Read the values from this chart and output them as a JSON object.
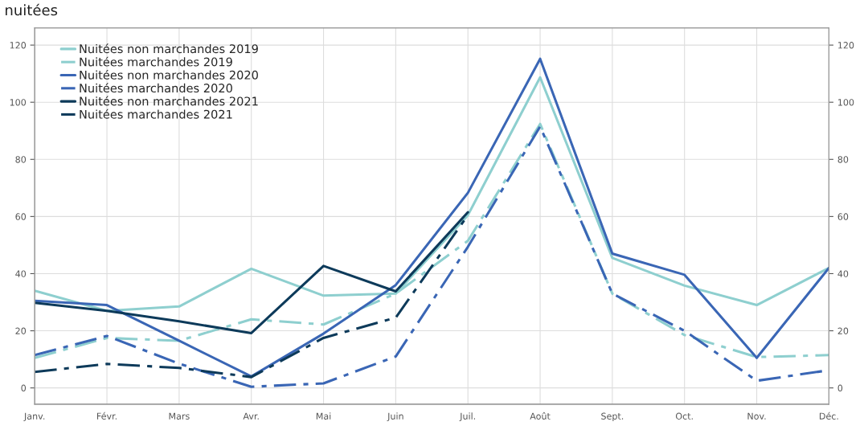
{
  "chart_data": {
    "type": "line",
    "title": "nuitées",
    "categories": [
      "Janv.",
      "Févr.",
      "Mars",
      "Avr.",
      "Mai",
      "Juin",
      "Juil.",
      "Août",
      "Sept.",
      "Oct.",
      "Nov.",
      "Déc."
    ],
    "series": [
      {
        "name": "Nuitées non marchandes 2019",
        "color": "#8ecfcf",
        "line_style": "solid",
        "values": [
          34,
          27,
          28.5,
          41.7,
          32.3,
          33,
          60.5,
          108.7,
          45.5,
          35.8,
          29,
          42
        ]
      },
      {
        "name": "Nuitées marchandes 2019",
        "color": "#8ecfcf",
        "line_style": "dashed",
        "values": [
          10.5,
          17.5,
          16.5,
          24,
          22.2,
          33,
          51.5,
          92.4,
          33,
          18.5,
          10.8,
          11.5
        ]
      },
      {
        "name": "Nuitées non marchandes 2020",
        "color": "#3a66b5",
        "line_style": "solid",
        "values": [
          30.5,
          29,
          16.5,
          4,
          19,
          36,
          68.3,
          115.2,
          47,
          39.6,
          10.5,
          42
        ]
      },
      {
        "name": "Nuitées marchandes 2020",
        "color": "#3a66b5",
        "line_style": "dashed",
        "values": [
          11.5,
          18.2,
          8.5,
          0.4,
          1.6,
          11,
          49.4,
          91.5,
          33,
          20,
          2.5,
          6.2
        ]
      },
      {
        "name": "Nuitées non marchandes 2021",
        "color": "#0d3a5a",
        "line_style": "solid",
        "values": [
          29.8,
          27,
          23.3,
          19.2,
          42.7,
          33.8,
          61.5,
          null,
          null,
          null,
          null,
          null
        ]
      },
      {
        "name": "Nuitées marchandes 2021",
        "color": "#0d3a5a",
        "line_style": "dashed",
        "values": [
          5.6,
          8.4,
          7,
          3.8,
          17.5,
          24.6,
          60.5,
          null,
          null,
          null,
          null,
          null
        ]
      }
    ],
    "ylim": [
      -5.7,
      126
    ],
    "yticks": [
      0,
      20,
      40,
      60,
      80,
      100,
      120
    ],
    "y2lim": [
      -5.7,
      126
    ],
    "y2ticks": [
      0,
      20,
      40,
      60,
      80,
      100,
      120
    ],
    "grid": true,
    "legend": "top left",
    "marker": "none"
  }
}
